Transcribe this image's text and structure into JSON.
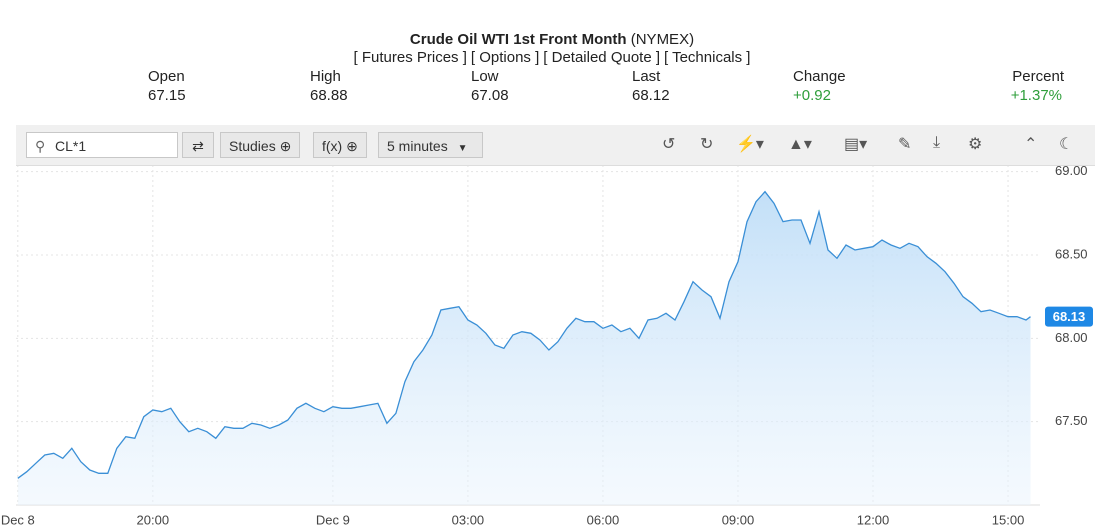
{
  "header": {
    "title": "Crude Oil WTI 1st Front Month",
    "exchange": "(NYMEX)",
    "links": [
      "[ Futures Prices ]",
      "[ Options ]",
      "[ Detailed Quote ]",
      "[ Technicals ]"
    ]
  },
  "quote": [
    {
      "label": "Open",
      "value": "67.15"
    },
    {
      "label": "High",
      "value": "68.88"
    },
    {
      "label": "Low",
      "value": "67.08"
    },
    {
      "label": "Last",
      "value": "68.12"
    },
    {
      "label": "Change",
      "value": "+0.92"
    },
    {
      "label": "Percent",
      "value": "+1.37%"
    }
  ],
  "toolbar": {
    "symbol": "CL*1",
    "studies": "Studies",
    "fx": "f(x)",
    "interval": "5 minutes"
  },
  "chart_data": {
    "type": "line",
    "x": [
      17,
      17.2,
      17.4,
      17.6,
      17.8,
      18,
      18.2,
      18.4,
      18.6,
      18.8,
      19,
      19.2,
      19.4,
      19.6,
      19.8,
      20,
      20.2,
      20.4,
      20.6,
      20.8,
      21,
      21.2,
      21.4,
      21.6,
      21.8,
      22,
      22.2,
      22.4,
      22.6,
      22.8,
      23,
      23.2,
      23.4,
      23.6,
      23.8,
      24,
      24.2,
      24.4,
      24.6,
      24.8,
      25,
      25.2,
      25.4,
      25.6,
      25.8,
      26,
      26.2,
      26.4,
      26.6,
      26.8,
      27,
      27.2,
      27.4,
      27.6,
      27.8,
      28,
      28.2,
      28.4,
      28.6,
      28.8,
      29,
      29.2,
      29.4,
      29.6,
      29.8,
      30,
      30.2,
      30.4,
      30.6,
      30.8,
      31,
      31.2,
      31.4,
      31.6,
      31.8,
      32,
      32.2,
      32.4,
      32.6,
      32.8,
      33,
      33.2,
      33.4,
      33.6,
      33.8,
      34,
      34.2,
      34.4,
      34.6,
      34.8,
      35,
      35.2,
      35.4,
      35.6,
      35.8,
      36,
      36.2,
      36.4,
      36.6,
      36.8,
      37,
      37.2,
      37.4,
      37.6,
      37.8,
      38,
      38.2,
      38.4,
      38.6,
      38.8,
      39,
      39.2,
      39.4,
      39.5
    ],
    "series": [
      {
        "name": "CL*1",
        "color": "#3a8fd6",
        "values": [
          67.16,
          67.2,
          67.25,
          67.3,
          67.31,
          67.28,
          67.34,
          67.26,
          67.21,
          67.19,
          67.19,
          67.34,
          67.41,
          67.4,
          67.53,
          67.57,
          67.56,
          67.58,
          67.5,
          67.44,
          67.46,
          67.44,
          67.4,
          67.47,
          67.46,
          67.46,
          67.49,
          67.48,
          67.46,
          67.48,
          67.51,
          67.58,
          67.61,
          67.58,
          67.56,
          67.59,
          67.58,
          67.58,
          67.59,
          67.6,
          67.61,
          67.49,
          67.55,
          67.74,
          67.86,
          67.93,
          68.02,
          68.17,
          68.18,
          68.19,
          68.11,
          68.08,
          68.03,
          67.96,
          67.94,
          68.02,
          68.04,
          68.03,
          67.99,
          67.93,
          67.98,
          68.06,
          68.12,
          68.1,
          68.1,
          68.06,
          68.08,
          68.04,
          68.06,
          68,
          68.11,
          68.12,
          68.15,
          68.11,
          68.22,
          68.34,
          68.29,
          68.25,
          68.12,
          68.34,
          68.46,
          68.7,
          68.82,
          68.88,
          68.81,
          68.7,
          68.71,
          68.71,
          68.57,
          68.76,
          68.53,
          68.48,
          68.56,
          68.53,
          68.54,
          68.55,
          68.59,
          68.56,
          68.54,
          68.57,
          68.55,
          68.49,
          68.45,
          68.4,
          68.33,
          68.25,
          68.21,
          68.16,
          68.17,
          68.15,
          68.13,
          68.13,
          68.11,
          68.13
        ]
      }
    ],
    "xlim": [
      16.96,
      39.71
    ],
    "xticks": [
      {
        "value": 17,
        "label": "Dec 8"
      },
      {
        "value": 20,
        "label": "20:00"
      },
      {
        "value": 24,
        "label": "Dec 9"
      },
      {
        "value": 27,
        "label": "03:00"
      },
      {
        "value": 30,
        "label": "06:00"
      },
      {
        "value": 33,
        "label": "09:00"
      },
      {
        "value": 36,
        "label": "12:00"
      },
      {
        "value": 39,
        "label": "15:00"
      }
    ],
    "ylim": [
      67,
      69.04
    ],
    "yticks": [
      {
        "value": 69,
        "label": "69.00"
      },
      {
        "value": 68.5,
        "label": "68.50"
      },
      {
        "value": 68,
        "label": "68.00"
      },
      {
        "value": 67.5,
        "label": "67.50"
      }
    ],
    "grid": true
  }
}
